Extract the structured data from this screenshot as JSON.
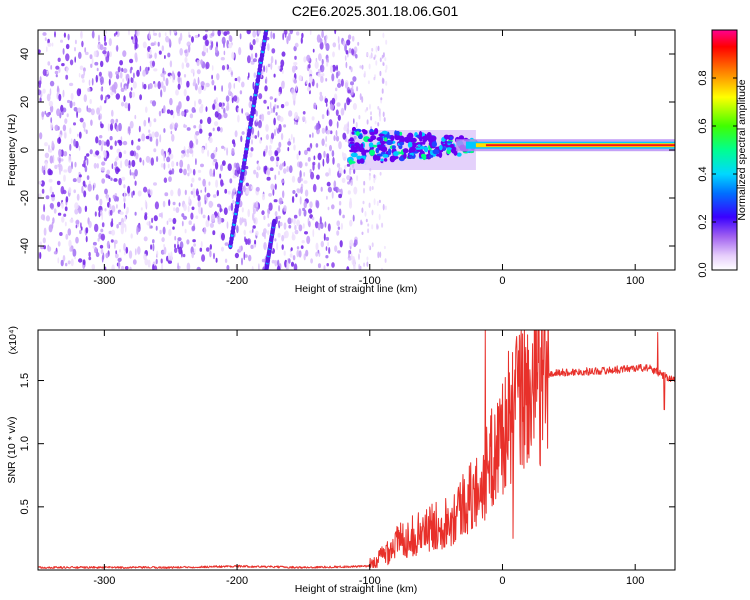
{
  "title": "C2E6.2025.301.18.06.G01",
  "colors": {
    "snr_line": "#e8302a",
    "frame": "#000000",
    "noise_dot": "#7a1fe0",
    "colormap": [
      "#ffffff",
      "#e6cdfb",
      "#a060f0",
      "#6a00f0",
      "#2244ff",
      "#00c8ff",
      "#00ff80",
      "#40ff00",
      "#ffff00",
      "#ff8000",
      "#ff0000",
      "#ff00a0"
    ]
  },
  "chart_data": [
    {
      "type": "heatmap",
      "name": "spectrogram",
      "xlabel": "Height of straight line (km)",
      "ylabel": "Frequency (Hz)",
      "xlim": [
        -350,
        130
      ],
      "ylim": [
        -50,
        50
      ],
      "xticks": [
        -300,
        -200,
        -100,
        0,
        100
      ],
      "xtick_labels": [
        "-300",
        "-200",
        "-100",
        "0",
        "100"
      ],
      "yticks": [
        -40,
        -20,
        0,
        20,
        40
      ],
      "ytick_labels": [
        "-40",
        "-20",
        "0",
        "20",
        "40"
      ],
      "colorbar": {
        "label": "Normalized spectral amplitude",
        "range": [
          0,
          1
        ],
        "ticks": [
          0.0,
          0.2,
          0.4,
          0.6,
          0.8
        ],
        "tick_labels": [
          "0.0",
          "0.2",
          "0.4",
          "0.6",
          "0.8"
        ]
      },
      "features": {
        "noise_region_km": [
          -350,
          -110
        ],
        "diagonal_track_1": {
          "from": [
            -205,
            -40
          ],
          "to": [
            -178,
            50
          ]
        },
        "diagonal_track_2": {
          "from": [
            -178,
            -50
          ],
          "to": [
            -172,
            -30
          ]
        },
        "transition_region_km": [
          -115,
          -20
        ],
        "signal_line_frequency_hz": 2,
        "signal_line_km": [
          -20,
          130
        ]
      }
    },
    {
      "type": "line",
      "name": "snr",
      "xlabel": "Height of straight line (km)",
      "ylabel": "SNR (10 * v/v)",
      "y_multiplier": "(x10⁴)",
      "xlim": [
        -350,
        130
      ],
      "ylim": [
        0,
        1.9
      ],
      "xticks": [
        -300,
        -200,
        -100,
        0,
        100
      ],
      "xtick_labels": [
        "-300",
        "-200",
        "-100",
        "0",
        "100"
      ],
      "yticks": [
        0.5,
        1.0,
        1.5
      ],
      "ytick_labels": [
        "0.5",
        "1.0",
        "1.5"
      ],
      "profile_points": {
        "x": [
          -350,
          -250,
          -200,
          -150,
          -100,
          -95,
          -90,
          -80,
          -60,
          -40,
          -30,
          -20,
          -15,
          -10,
          -5,
          0,
          5,
          10,
          20,
          30,
          40,
          60,
          80,
          100,
          110,
          120,
          130
        ],
        "y": [
          0.02,
          0.02,
          0.03,
          0.02,
          0.03,
          0.06,
          0.12,
          0.22,
          0.3,
          0.4,
          0.52,
          0.6,
          0.72,
          0.82,
          0.95,
          1.08,
          1.2,
          1.3,
          1.42,
          1.52,
          1.56,
          1.57,
          1.58,
          1.6,
          1.6,
          1.55,
          1.5
        ]
      },
      "spikes": [
        {
          "x": -13,
          "y": 1.9
        },
        {
          "x": 10,
          "y": 1.75
        },
        {
          "x": 8,
          "y": 0.25
        },
        {
          "x": 117,
          "y": 1.88
        },
        {
          "x": 122,
          "y": 1.27
        }
      ]
    }
  ]
}
